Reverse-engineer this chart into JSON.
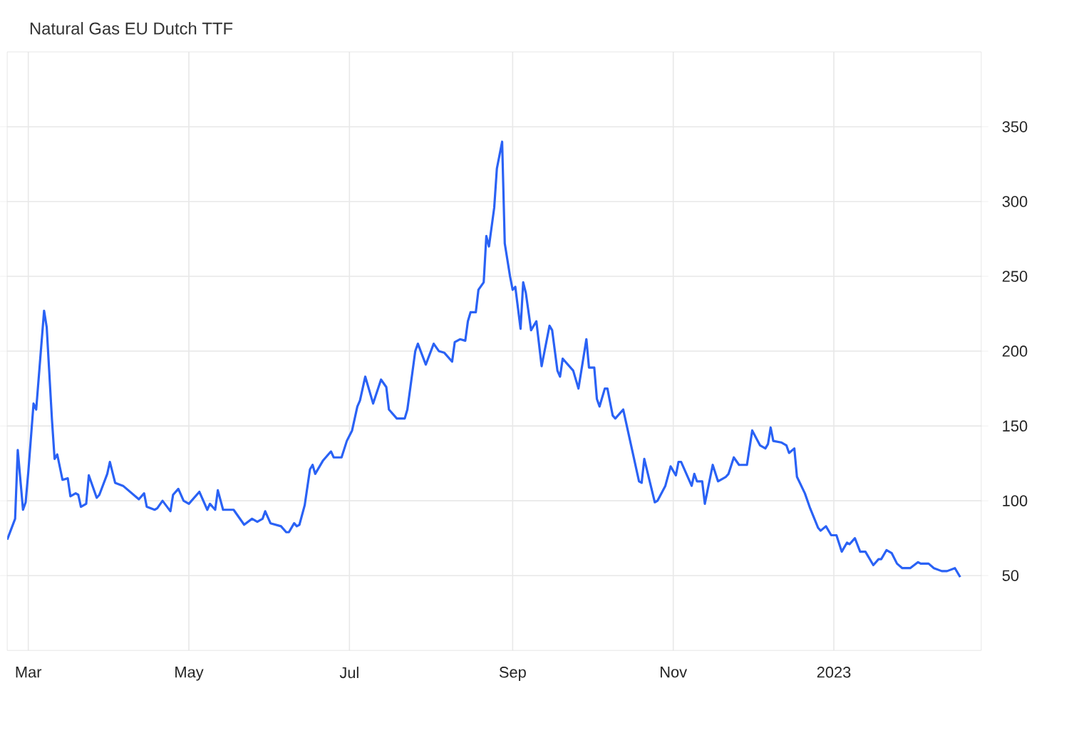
{
  "chart_data": {
    "type": "line",
    "title": "Natural Gas EU Dutch TTF",
    "x": [
      "2022-02-21",
      "2022-02-24",
      "2022-02-25",
      "2022-02-27",
      "2022-02-28",
      "2022-03-01",
      "2022-03-03",
      "2022-03-04",
      "2022-03-07",
      "2022-03-08",
      "2022-03-10",
      "2022-03-11",
      "2022-03-12",
      "2022-03-14",
      "2022-03-16",
      "2022-03-17",
      "2022-03-19",
      "2022-03-20",
      "2022-03-21",
      "2022-03-23",
      "2022-03-24",
      "2022-03-25",
      "2022-03-27",
      "2022-03-28",
      "2022-03-31",
      "2022-04-01",
      "2022-04-03",
      "2022-04-06",
      "2022-04-10",
      "2022-04-12",
      "2022-04-14",
      "2022-04-15",
      "2022-04-18",
      "2022-04-19",
      "2022-04-21",
      "2022-04-24",
      "2022-04-25",
      "2022-04-27",
      "2022-04-29",
      "2022-05-01",
      "2022-05-05",
      "2022-05-08",
      "2022-05-09",
      "2022-05-11",
      "2022-05-12",
      "2022-05-14",
      "2022-05-18",
      "2022-05-22",
      "2022-05-25",
      "2022-05-27",
      "2022-05-29",
      "2022-05-30",
      "2022-06-01",
      "2022-06-05",
      "2022-06-07",
      "2022-06-08",
      "2022-06-10",
      "2022-06-11",
      "2022-06-12",
      "2022-06-14",
      "2022-06-16",
      "2022-06-17",
      "2022-06-18",
      "2022-06-21",
      "2022-06-24",
      "2022-06-25",
      "2022-06-28",
      "2022-06-30",
      "2022-07-02",
      "2022-07-04",
      "2022-07-05",
      "2022-07-07",
      "2022-07-10",
      "2022-07-13",
      "2022-07-15",
      "2022-07-16",
      "2022-07-19",
      "2022-07-22",
      "2022-07-23",
      "2022-07-26",
      "2022-07-27",
      "2022-07-30",
      "2022-08-02",
      "2022-08-04",
      "2022-08-06",
      "2022-08-09",
      "2022-08-10",
      "2022-08-12",
      "2022-08-14",
      "2022-08-15",
      "2022-08-16",
      "2022-08-18",
      "2022-08-19",
      "2022-08-21",
      "2022-08-22",
      "2022-08-23",
      "2022-08-25",
      "2022-08-26",
      "2022-08-28",
      "2022-08-29",
      "2022-08-31",
      "2022-09-01",
      "2022-09-02",
      "2022-09-04",
      "2022-09-05",
      "2022-09-06",
      "2022-09-08",
      "2022-09-10",
      "2022-09-12",
      "2022-09-15",
      "2022-09-16",
      "2022-09-18",
      "2022-09-19",
      "2022-09-20",
      "2022-09-24",
      "2022-09-26",
      "2022-09-29",
      "2022-09-30",
      "2022-10-02",
      "2022-10-03",
      "2022-10-04",
      "2022-10-06",
      "2022-10-07",
      "2022-10-09",
      "2022-10-10",
      "2022-10-13",
      "2022-10-14",
      "2022-10-19",
      "2022-10-20",
      "2022-10-21",
      "2022-10-25",
      "2022-10-26",
      "2022-10-29",
      "2022-10-31",
      "2022-11-02",
      "2022-11-03",
      "2022-11-04",
      "2022-11-08",
      "2022-11-09",
      "2022-11-10",
      "2022-11-12",
      "2022-11-13",
      "2022-11-16",
      "2022-11-18",
      "2022-11-21",
      "2022-11-22",
      "2022-11-24",
      "2022-11-26",
      "2022-11-29",
      "2022-12-01",
      "2022-12-04",
      "2022-12-06",
      "2022-12-07",
      "2022-12-08",
      "2022-12-09",
      "2022-12-12",
      "2022-12-14",
      "2022-12-15",
      "2022-12-17",
      "2022-12-18",
      "2022-12-21",
      "2022-12-23",
      "2022-12-26",
      "2022-12-27",
      "2022-12-29",
      "2022-12-31",
      "2023-01-02",
      "2023-01-04",
      "2023-01-06",
      "2023-01-07",
      "2023-01-09",
      "2023-01-11",
      "2023-01-13",
      "2023-01-16",
      "2023-01-18",
      "2023-01-19",
      "2023-01-21",
      "2023-01-23",
      "2023-01-25",
      "2023-01-27",
      "2023-01-30",
      "2023-02-02",
      "2023-02-03",
      "2023-02-06",
      "2023-02-08",
      "2023-02-11",
      "2023-02-13",
      "2023-02-16",
      "2023-02-18"
    ],
    "series": [
      {
        "color": "#2a62f5",
        "values": [
          74,
          88,
          134,
          94,
          99,
          119,
          165,
          161,
          227,
          216,
          154,
          128,
          131,
          114,
          115,
          103,
          105,
          104,
          96,
          98,
          117,
          112,
          102,
          104,
          118,
          126,
          112,
          110,
          104,
          101,
          105,
          96,
          94,
          95,
          100,
          93,
          104,
          108,
          100,
          98,
          106,
          94,
          98,
          94,
          107,
          94,
          94,
          84,
          88,
          86,
          88,
          93,
          85,
          83,
          79,
          79,
          85,
          83,
          84,
          97,
          121,
          124,
          118,
          127,
          133,
          129,
          129,
          140,
          147,
          163,
          167,
          183,
          165,
          181,
          176,
          161,
          155,
          155,
          161,
          200,
          205,
          191,
          205,
          200,
          199,
          193,
          206,
          208,
          207,
          220,
          226,
          226,
          241,
          246,
          277,
          270,
          296,
          322,
          340,
          272,
          250,
          241,
          243,
          215,
          246,
          239,
          214,
          220,
          190,
          217,
          214,
          187,
          183,
          195,
          187,
          175,
          208,
          189,
          189,
          168,
          163,
          175,
          175,
          157,
          155,
          161,
          153,
          113,
          112,
          128,
          99,
          100,
          110,
          123,
          117,
          126,
          126,
          110,
          118,
          113,
          113,
          98,
          124,
          113,
          116,
          118,
          129,
          124,
          124,
          147,
          137,
          135,
          138,
          149,
          140,
          139,
          137,
          132,
          135,
          116,
          105,
          95,
          82,
          80,
          83,
          77,
          77,
          66,
          72,
          71,
          75,
          66,
          66,
          57,
          61,
          61,
          67,
          65,
          58,
          55,
          55,
          59,
          58,
          58,
          55,
          53,
          53,
          55,
          49
        ]
      }
    ],
    "xlim": [
      "2022-02-21",
      "2023-02-26"
    ],
    "xticks": [
      {
        "value": "2022-03-01",
        "label": "Mar"
      },
      {
        "value": "2022-05-01",
        "label": "May"
      },
      {
        "value": "2022-07-01",
        "label": "Jul"
      },
      {
        "value": "2022-09-01",
        "label": "Sep"
      },
      {
        "value": "2022-11-01",
        "label": "Nov"
      },
      {
        "value": "2023-01-01",
        "label": "2023"
      }
    ],
    "ylim": [
      0,
      400
    ],
    "yticks": [
      50,
      100,
      150,
      200,
      250,
      300,
      350
    ],
    "grid": true
  }
}
